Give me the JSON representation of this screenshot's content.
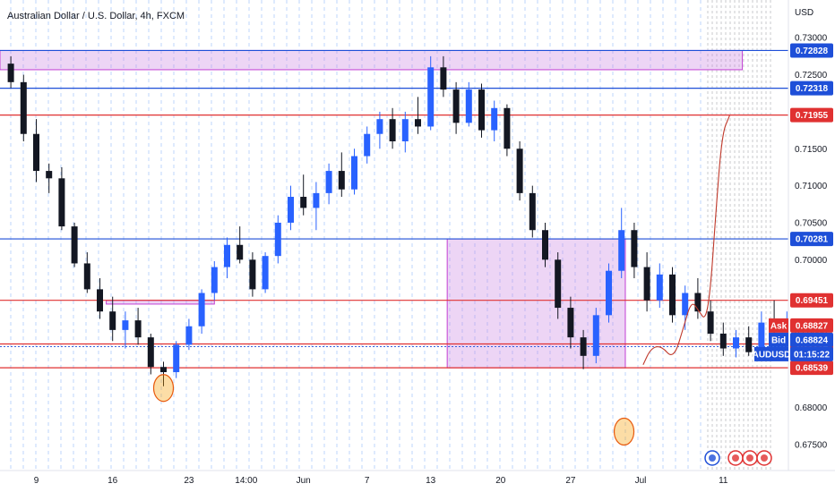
{
  "chart_data": {
    "type": "candlestick",
    "title": "Australian Dollar / U.S. Dollar, 4h, FXCM",
    "currency_label": "USD",
    "ylim": [
      0.6715,
      0.7345
    ],
    "y_ticks": [
      "0.73000",
      "0.72500",
      "0.72000",
      "0.71500",
      "0.71000",
      "0.70500",
      "0.70000",
      "0.69500",
      "0.69000",
      "0.68500",
      "0.68000",
      "0.67500"
    ],
    "x_ticks": [
      "9",
      "16",
      "23",
      "14:00",
      "Jun",
      "7",
      "13",
      "20",
      "27",
      "Jul",
      "11"
    ],
    "x_tick_values": [
      2,
      8,
      14,
      18.5,
      23,
      28,
      33,
      38.5,
      44,
      49.5,
      56
    ],
    "horizontal_levels": [
      {
        "price": 0.72828,
        "label": "0.72828",
        "color": "#1e4fd8"
      },
      {
        "price": 0.72318,
        "label": "0.72318",
        "color": "#1e4fd8"
      },
      {
        "price": 0.71955,
        "label": "0.71955",
        "color": "#e03131"
      },
      {
        "price": 0.70281,
        "label": "0.70281",
        "color": "#1e4fd8"
      },
      {
        "price": 0.69451,
        "label": "0.69451",
        "color": "#e03131"
      },
      {
        "price": 0.68861,
        "label": "0.68861",
        "color": "#e03131"
      },
      {
        "price": 0.68539,
        "label": "0.68539",
        "color": "#e03131"
      }
    ],
    "quote_tags": [
      {
        "name": "Ask",
        "price": 0.68827,
        "label": "0.68827",
        "color": "#e03131"
      },
      {
        "name": "Bid",
        "price": 0.68824,
        "label": "0.68824",
        "color": "#1e4fd8"
      }
    ],
    "symbol_tag": {
      "symbol": "AUDUSD",
      "countdown": "01:15:22",
      "price": 0.68824
    },
    "zones": [
      {
        "y_top": 0.72828,
        "y_bottom": 0.72568,
        "x_start": -1,
        "x_end": 58
      },
      {
        "y_top": 0.70281,
        "y_bottom": 0.68539,
        "x_start": 34.8,
        "x_end": 48.8
      },
      {
        "y_top": 0.6945,
        "y_bottom": 0.694,
        "x_start": 8,
        "x_end": 16.5
      }
    ],
    "ohlc": [
      [
        0.7265,
        0.7275,
        0.7232,
        0.724
      ],
      [
        0.724,
        0.725,
        0.716,
        0.717
      ],
      [
        0.717,
        0.719,
        0.7105,
        0.712
      ],
      [
        0.712,
        0.713,
        0.709,
        0.711
      ],
      [
        0.711,
        0.7125,
        0.704,
        0.7045
      ],
      [
        0.7045,
        0.705,
        0.699,
        0.6995
      ],
      [
        0.6995,
        0.701,
        0.6955,
        0.696
      ],
      [
        0.696,
        0.6975,
        0.692,
        0.693
      ],
      [
        0.693,
        0.695,
        0.689,
        0.6905
      ],
      [
        0.6905,
        0.693,
        0.688,
        0.6918
      ],
      [
        0.6918,
        0.6935,
        0.6885,
        0.6895
      ],
      [
        0.6895,
        0.69,
        0.6845,
        0.6855
      ],
      [
        0.6855,
        0.6862,
        0.6829,
        0.6848
      ],
      [
        0.6848,
        0.689,
        0.684,
        0.6885
      ],
      [
        0.6885,
        0.692,
        0.6878,
        0.691
      ],
      [
        0.691,
        0.696,
        0.69,
        0.6955
      ],
      [
        0.6955,
        0.6998,
        0.6945,
        0.699
      ],
      [
        0.699,
        0.703,
        0.6975,
        0.702
      ],
      [
        0.702,
        0.7045,
        0.6995,
        0.7
      ],
      [
        0.7,
        0.701,
        0.695,
        0.696
      ],
      [
        0.696,
        0.701,
        0.6955,
        0.7005
      ],
      [
        0.7005,
        0.706,
        0.6995,
        0.705
      ],
      [
        0.705,
        0.71,
        0.704,
        0.7085
      ],
      [
        0.7085,
        0.7115,
        0.706,
        0.707
      ],
      [
        0.707,
        0.7105,
        0.704,
        0.709
      ],
      [
        0.709,
        0.713,
        0.7075,
        0.712
      ],
      [
        0.712,
        0.7145,
        0.7085,
        0.7095
      ],
      [
        0.7095,
        0.715,
        0.7088,
        0.714
      ],
      [
        0.714,
        0.718,
        0.713,
        0.717
      ],
      [
        0.717,
        0.72,
        0.715,
        0.719
      ],
      [
        0.719,
        0.7205,
        0.715,
        0.716
      ],
      [
        0.716,
        0.72,
        0.7145,
        0.719
      ],
      [
        0.719,
        0.722,
        0.717,
        0.718
      ],
      [
        0.718,
        0.7275,
        0.7175,
        0.726
      ],
      [
        0.726,
        0.7275,
        0.722,
        0.723
      ],
      [
        0.723,
        0.724,
        0.717,
        0.7185
      ],
      [
        0.7185,
        0.724,
        0.718,
        0.723
      ],
      [
        0.723,
        0.7238,
        0.7165,
        0.7175
      ],
      [
        0.7175,
        0.7215,
        0.716,
        0.7205
      ],
      [
        0.7205,
        0.721,
        0.714,
        0.715
      ],
      [
        0.715,
        0.716,
        0.708,
        0.709
      ],
      [
        0.709,
        0.71,
        0.703,
        0.704
      ],
      [
        0.704,
        0.705,
        0.699,
        0.7
      ],
      [
        0.7,
        0.701,
        0.692,
        0.6935
      ],
      [
        0.6935,
        0.695,
        0.688,
        0.6895
      ],
      [
        0.6895,
        0.6905,
        0.6852,
        0.687
      ],
      [
        0.687,
        0.6935,
        0.686,
        0.6925
      ],
      [
        0.6925,
        0.6995,
        0.6915,
        0.6985
      ],
      [
        0.6985,
        0.707,
        0.6975,
        0.704
      ],
      [
        0.704,
        0.705,
        0.6975,
        0.699
      ],
      [
        0.699,
        0.701,
        0.693,
        0.6945
      ],
      [
        0.6945,
        0.6995,
        0.6935,
        0.698
      ],
      [
        0.698,
        0.699,
        0.6915,
        0.6925
      ],
      [
        0.6925,
        0.6965,
        0.6905,
        0.6955
      ],
      [
        0.6955,
        0.6975,
        0.692,
        0.693
      ],
      [
        0.693,
        0.6945,
        0.689,
        0.69
      ],
      [
        0.69,
        0.6915,
        0.687,
        0.688
      ],
      [
        0.688,
        0.6905,
        0.6868,
        0.6895
      ],
      [
        0.6895,
        0.691,
        0.687,
        0.6875
      ],
      [
        0.6875,
        0.693,
        0.687,
        0.6915
      ],
      [
        0.6915,
        0.6945,
        0.6895,
        0.691
      ],
      [
        0.691,
        0.693,
        0.6885,
        0.692
      ],
      [
        0.692,
        0.694,
        0.689,
        0.69
      ],
      [
        0.69,
        0.6912,
        0.6865,
        0.6875
      ],
      [
        0.6875,
        0.689,
        0.685,
        0.686
      ],
      [
        0.686,
        0.689,
        0.685,
        0.688
      ],
      [
        0.688,
        0.6885,
        0.679,
        0.6805
      ],
      [
        0.6805,
        0.6812,
        0.677,
        0.6785
      ],
      [
        0.6785,
        0.683,
        0.6778,
        0.682
      ],
      [
        0.682,
        0.687,
        0.6812,
        0.686
      ],
      [
        0.686,
        0.689,
        0.6845,
        0.6882
      ]
    ],
    "projection_path": [
      [
        50.2,
        0.6858
      ],
      [
        50.8,
        0.688
      ],
      [
        51.6,
        0.6884
      ],
      [
        52.6,
        0.6865
      ],
      [
        53.4,
        0.691
      ],
      [
        54.0,
        0.6945
      ],
      [
        54.6,
        0.693
      ],
      [
        55.1,
        0.6918
      ],
      [
        55.5,
        0.696
      ],
      [
        55.9,
        0.706
      ],
      [
        56.4,
        0.717
      ],
      [
        57.0,
        0.7195
      ]
    ]
  }
}
